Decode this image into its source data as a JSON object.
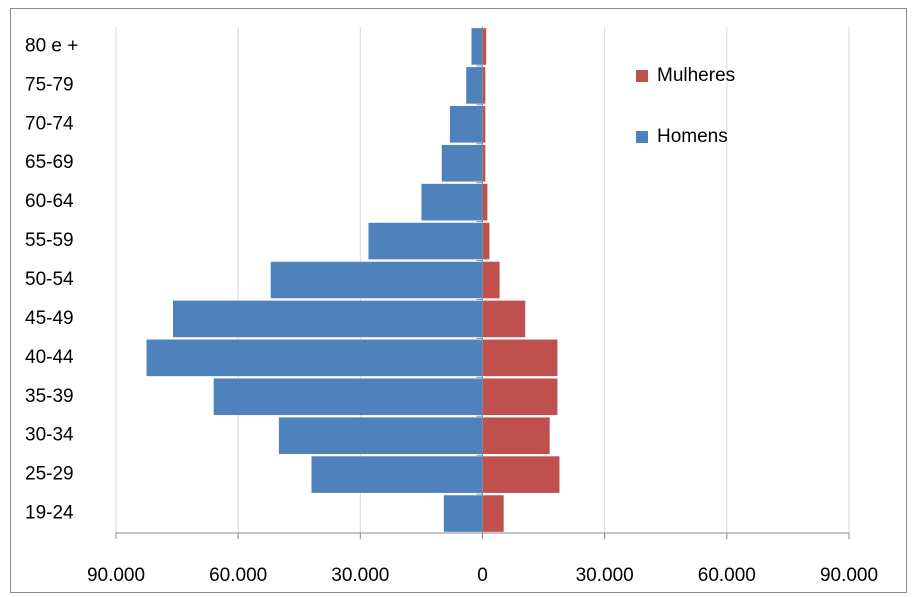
{
  "chart_data": {
    "type": "bar",
    "orientation": "horizontal",
    "stacked": true,
    "categories": [
      "19-24",
      "25-29",
      "30-34",
      "35-39",
      "40-44",
      "45-49",
      "50-54",
      "55-59",
      "60-64",
      "65-69",
      "70-74",
      "75-79",
      "80 e +"
    ],
    "series": [
      {
        "name": "Homens",
        "color": "#4f81bd",
        "values": [
          -9500,
          -42000,
          -50000,
          -66000,
          -82500,
          -76000,
          -52000,
          -28000,
          -15000,
          -10000,
          -8000,
          -4000,
          -2700
        ]
      },
      {
        "name": "Mulheres",
        "color": "#c0504d",
        "values": [
          5200,
          18900,
          16500,
          18400,
          18400,
          10500,
          4200,
          1700,
          1200,
          700,
          700,
          700,
          900
        ]
      }
    ],
    "xlim": [
      -90000,
      90000
    ],
    "xticks": [
      {
        "value": -90000,
        "label": "90.000"
      },
      {
        "value": -60000,
        "label": "60.000"
      },
      {
        "value": -30000,
        "label": "30.000"
      },
      0,
      {
        "value": 30000,
        "label": "30.000"
      },
      {
        "value": 60000,
        "label": "60.000"
      },
      {
        "value": 90000,
        "label": "90.000"
      }
    ],
    "grid": true,
    "legend": "upper right"
  }
}
